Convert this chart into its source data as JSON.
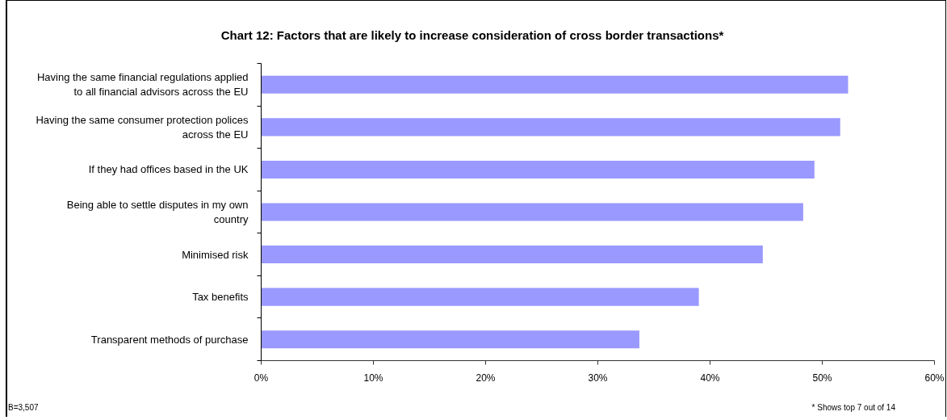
{
  "chart_data": {
    "type": "bar",
    "orientation": "horizontal",
    "title": "Chart 12: Factors that are likely to increase consideration of cross border transactions*",
    "categories": [
      "Having the same financial regulations applied to all financial advisors across the EU",
      "Having the same consumer protection polices across the EU",
      "If they had offices based in the UK",
      "Being able to settle disputes in my own country",
      "Minimised risk",
      "Tax benefits",
      "Transparent methods of purchase"
    ],
    "values": [
      52.3,
      51.6,
      49.3,
      48.3,
      44.7,
      39.0,
      33.7
    ],
    "color": "#9999ff",
    "xlim": [
      0,
      60
    ],
    "xticks": [
      {
        "value": 0,
        "label": "0%"
      },
      {
        "value": 10,
        "label": "10%"
      },
      {
        "value": 20,
        "label": "20%"
      },
      {
        "value": 30,
        "label": "30%"
      },
      {
        "value": 40,
        "label": "40%"
      },
      {
        "value": 50,
        "label": "50%"
      },
      {
        "value": 60,
        "label": "60%"
      }
    ],
    "grid": false,
    "annotations": [
      "B=3,507",
      "* Shows top 7 out of 14"
    ]
  }
}
